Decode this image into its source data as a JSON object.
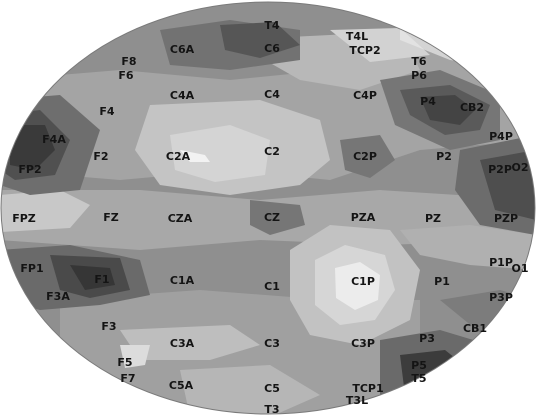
{
  "map": {
    "type": "scalp-topography",
    "electrodes": [
      {
        "id": "T4",
        "label": "T4"
      },
      {
        "id": "C6A",
        "label": "C6A"
      },
      {
        "id": "C6",
        "label": "C6"
      },
      {
        "id": "T4L",
        "label": "T4L"
      },
      {
        "id": "TCP2",
        "label": "TCP2"
      },
      {
        "id": "F8",
        "label": "F8"
      },
      {
        "id": "F6",
        "label": "F6"
      },
      {
        "id": "T6",
        "label": "T6"
      },
      {
        "id": "P6",
        "label": "P6"
      },
      {
        "id": "C4A",
        "label": "C4A"
      },
      {
        "id": "C4",
        "label": "C4"
      },
      {
        "id": "C4P",
        "label": "C4P"
      },
      {
        "id": "P4",
        "label": "P4"
      },
      {
        "id": "CB2",
        "label": "CB2"
      },
      {
        "id": "F4",
        "label": "F4"
      },
      {
        "id": "F4A",
        "label": "F4A"
      },
      {
        "id": "P4P",
        "label": "P4P"
      },
      {
        "id": "F2",
        "label": "F2"
      },
      {
        "id": "C2A",
        "label": "C2A"
      },
      {
        "id": "C2",
        "label": "C2"
      },
      {
        "id": "C2P",
        "label": "C2P"
      },
      {
        "id": "P2",
        "label": "P2"
      },
      {
        "id": "FP2",
        "label": "FP2"
      },
      {
        "id": "P2P",
        "label": "P2P"
      },
      {
        "id": "O2",
        "label": "O2"
      },
      {
        "id": "FPZ",
        "label": "FPZ"
      },
      {
        "id": "FZ",
        "label": "FZ"
      },
      {
        "id": "CZA",
        "label": "CZA"
      },
      {
        "id": "CZ",
        "label": "CZ"
      },
      {
        "id": "PZA",
        "label": "PZA"
      },
      {
        "id": "PZ",
        "label": "PZ"
      },
      {
        "id": "PZP",
        "label": "PZP"
      },
      {
        "id": "FP1",
        "label": "FP1"
      },
      {
        "id": "F1",
        "label": "F1"
      },
      {
        "id": "C1A",
        "label": "C1A"
      },
      {
        "id": "C1",
        "label": "C1"
      },
      {
        "id": "C1P",
        "label": "C1P"
      },
      {
        "id": "P1",
        "label": "P1"
      },
      {
        "id": "P1P",
        "label": "P1P"
      },
      {
        "id": "O1",
        "label": "O1"
      },
      {
        "id": "F3A",
        "label": "F3A"
      },
      {
        "id": "P3P",
        "label": "P3P"
      },
      {
        "id": "F3",
        "label": "F3"
      },
      {
        "id": "CB1",
        "label": "CB1"
      },
      {
        "id": "C3A",
        "label": "C3A"
      },
      {
        "id": "C3",
        "label": "C3"
      },
      {
        "id": "C3P",
        "label": "C3P"
      },
      {
        "id": "P3",
        "label": "P3"
      },
      {
        "id": "F5",
        "label": "F5"
      },
      {
        "id": "F7",
        "label": "F7"
      },
      {
        "id": "P5",
        "label": "P5"
      },
      {
        "id": "T5",
        "label": "T5"
      },
      {
        "id": "C5A",
        "label": "C5A"
      },
      {
        "id": "C5",
        "label": "C5"
      },
      {
        "id": "TCP1",
        "label": "TCP1"
      },
      {
        "id": "T3L",
        "label": "T3L"
      },
      {
        "id": "T3",
        "label": "T3"
      }
    ]
  }
}
